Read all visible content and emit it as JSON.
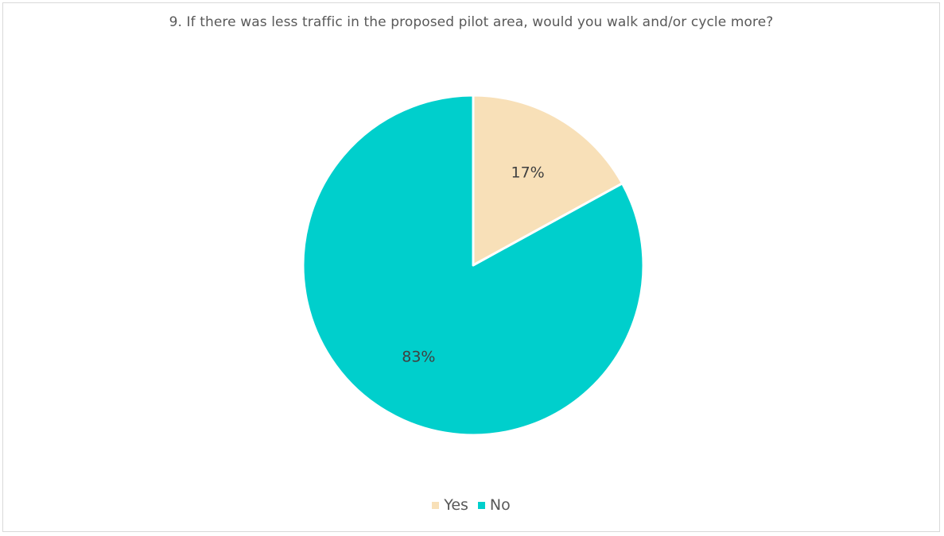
{
  "chart_data": {
    "type": "pie",
    "title": "9. If there was less traffic in the proposed pilot area, would you walk and/or cycle more?",
    "slices": [
      {
        "name": "Yes",
        "value": 17,
        "label": "17%",
        "color": "#f8e0b8"
      },
      {
        "name": "No",
        "value": 83,
        "label": "83%",
        "color": "#00cfcc"
      }
    ],
    "legend_position": "bottom",
    "start_angle": "top, clockwise"
  }
}
